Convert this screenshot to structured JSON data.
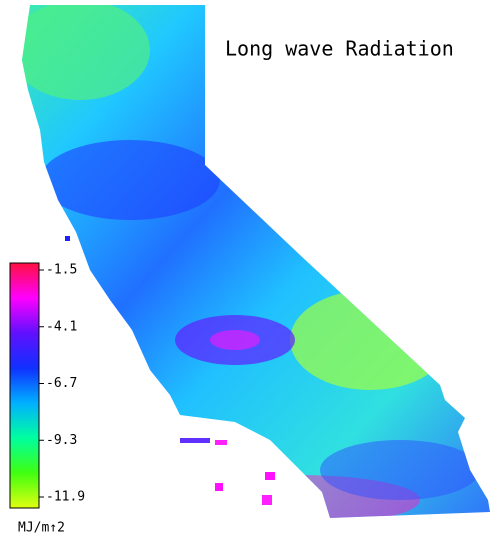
{
  "title": "Long wave Radiation",
  "legend": {
    "ticks": [
      -1.5,
      -4.1,
      -6.7,
      -9.3,
      -11.9
    ],
    "unit": "MJ/m↑2",
    "colors": [
      "#ff1040",
      "#ff00ff",
      "#6010ff",
      "#1030ff",
      "#00b0ff",
      "#00ffa0",
      "#40ff10",
      "#e0ff10"
    ]
  }
}
